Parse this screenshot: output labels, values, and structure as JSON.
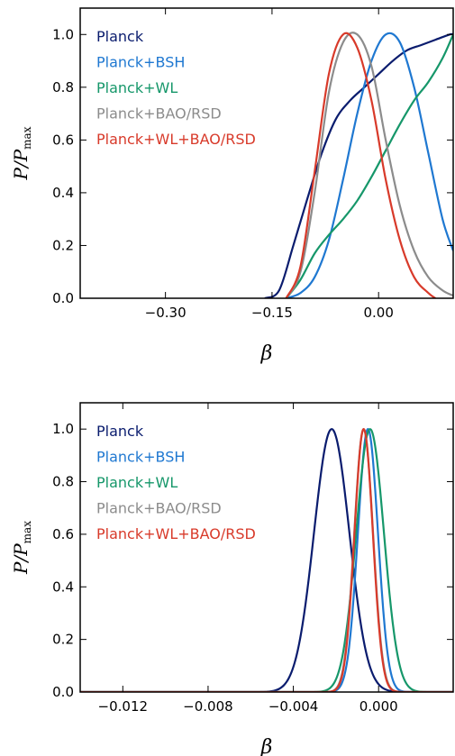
{
  "chart_data": [
    {
      "type": "line",
      "xlabel": "β",
      "ylabel": "P/Pmax",
      "xlim": [
        -0.42,
        0.105
      ],
      "ylim": [
        0,
        1.1
      ],
      "xticks": [
        -0.3,
        -0.15,
        0.0
      ],
      "xtick_labels": [
        "−0.30",
        "−0.15",
        "0.00"
      ],
      "yticks": [
        0.0,
        0.2,
        0.4,
        0.6,
        0.8,
        1.0
      ],
      "ytick_labels": [
        "0.0",
        "0.2",
        "0.4",
        "0.6",
        "0.8",
        "1.0"
      ],
      "legend_position": "top-left",
      "series": [
        {
          "name": "Planck",
          "color": "#0a1c6e",
          "points": [
            [
              -0.16,
              0.0
            ],
            [
              -0.14,
              0.03
            ],
            [
              -0.12,
              0.2
            ],
            [
              -0.1,
              0.38
            ],
            [
              -0.08,
              0.55
            ],
            [
              -0.06,
              0.68
            ],
            [
              -0.04,
              0.75
            ],
            [
              -0.02,
              0.8
            ],
            [
              0.0,
              0.85
            ],
            [
              0.02,
              0.9
            ],
            [
              0.04,
              0.94
            ],
            [
              0.06,
              0.96
            ],
            [
              0.08,
              0.98
            ],
            [
              0.1,
              1.0
            ],
            [
              0.105,
              1.0
            ]
          ]
        },
        {
          "name": "Planck+BSH",
          "color": "#1f78d1",
          "points": [
            [
              -0.13,
              0.0
            ],
            [
              -0.11,
              0.02
            ],
            [
              -0.09,
              0.08
            ],
            [
              -0.07,
              0.22
            ],
            [
              -0.05,
              0.45
            ],
            [
              -0.03,
              0.7
            ],
            [
              -0.01,
              0.9
            ],
            [
              0.01,
              1.0
            ],
            [
              0.03,
              0.97
            ],
            [
              0.05,
              0.8
            ],
            [
              0.07,
              0.55
            ],
            [
              0.09,
              0.3
            ],
            [
              0.105,
              0.18
            ]
          ]
        },
        {
          "name": "Planck+WL",
          "color": "#16976a",
          "points": [
            [
              -0.13,
              0.0
            ],
            [
              -0.11,
              0.07
            ],
            [
              -0.09,
              0.17
            ],
            [
              -0.07,
              0.24
            ],
            [
              -0.05,
              0.3
            ],
            [
              -0.03,
              0.37
            ],
            [
              -0.01,
              0.46
            ],
            [
              0.01,
              0.56
            ],
            [
              0.03,
              0.66
            ],
            [
              0.05,
              0.75
            ],
            [
              0.07,
              0.82
            ],
            [
              0.09,
              0.91
            ],
            [
              0.105,
              1.0
            ]
          ]
        },
        {
          "name": "Planck+BAO/RSD",
          "color": "#8c8c8c",
          "points": [
            [
              -0.13,
              0.0
            ],
            [
              -0.11,
              0.1
            ],
            [
              -0.09,
              0.4
            ],
            [
              -0.07,
              0.78
            ],
            [
              -0.05,
              0.97
            ],
            [
              -0.03,
              1.0
            ],
            [
              -0.01,
              0.88
            ],
            [
              0.01,
              0.6
            ],
            [
              0.03,
              0.35
            ],
            [
              0.05,
              0.18
            ],
            [
              0.07,
              0.08
            ],
            [
              0.09,
              0.03
            ],
            [
              0.105,
              0.01
            ]
          ]
        },
        {
          "name": "Planck+WL+BAO/RSD",
          "color": "#d83a2a",
          "points": [
            [
              -0.13,
              0.0
            ],
            [
              -0.11,
              0.12
            ],
            [
              -0.09,
              0.48
            ],
            [
              -0.07,
              0.85
            ],
            [
              -0.05,
              1.0
            ],
            [
              -0.03,
              0.95
            ],
            [
              -0.01,
              0.75
            ],
            [
              0.01,
              0.45
            ],
            [
              0.03,
              0.22
            ],
            [
              0.05,
              0.08
            ],
            [
              0.07,
              0.02
            ],
            [
              0.08,
              0.0
            ]
          ]
        }
      ]
    },
    {
      "type": "line",
      "xlabel": "β",
      "ylabel": "P/Pmax",
      "xlim": [
        -0.014,
        0.0035
      ],
      "ylim": [
        0,
        1.1
      ],
      "xticks": [
        -0.012,
        -0.008,
        -0.004,
        0.0
      ],
      "xtick_labels": [
        "−0.012",
        "−0.008",
        "−0.004",
        "0.000"
      ],
      "yticks": [
        0.0,
        0.2,
        0.4,
        0.6,
        0.8,
        1.0
      ],
      "ytick_labels": [
        "0.0",
        "0.2",
        "0.4",
        "0.6",
        "0.8",
        "1.0"
      ],
      "legend_position": "top-left",
      "series": [
        {
          "name": "Planck",
          "color": "#0a1c6e",
          "gaussian": {
            "mu": -0.0022,
            "sigma": 0.00083
          }
        },
        {
          "name": "Planck+BSH",
          "color": "#1f78d1",
          "gaussian": {
            "mu": -0.0005,
            "sigma": 0.00047
          }
        },
        {
          "name": "Planck+WL",
          "color": "#16976a",
          "gaussian": {
            "mu": -0.0004,
            "sigma": 0.00065
          }
        },
        {
          "name": "Planck+BAO/RSD",
          "color": "#8c8c8c",
          "gaussian": {
            "mu": -0.0007,
            "sigma": 0.00044
          }
        },
        {
          "name": "Planck+WL+BAO/RSD",
          "color": "#d83a2a",
          "gaussian": {
            "mu": -0.0007,
            "sigma": 0.00043
          }
        }
      ]
    }
  ]
}
